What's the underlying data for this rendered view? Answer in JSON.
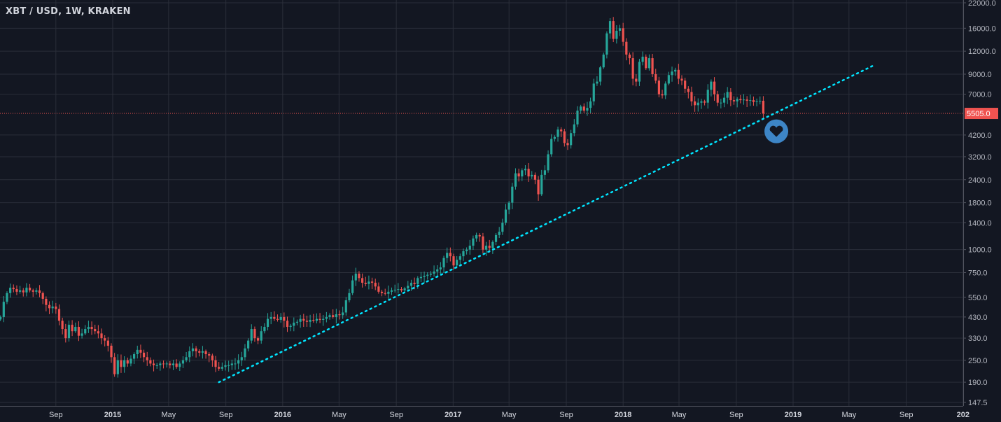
{
  "header": {
    "title": "XBT / USD, 1W, KRAKEN"
  },
  "colors": {
    "background": "#131722",
    "grid": "#2a2e39",
    "up": "#26a69a",
    "down": "#ef5350",
    "trendline": "#00e5ff",
    "price_label": "#ef5350",
    "marker": "#3d85c6"
  },
  "chart_data": {
    "type": "candlestick",
    "symbol": "XBT / USD",
    "interval": "1W",
    "exchange": "KRAKEN",
    "y_scale": "log",
    "ylim": [
      147.5,
      22000
    ],
    "grid": true,
    "y_ticks": [
      "22000.0",
      "16000.0",
      "12000.0",
      "9000.0",
      "7000.0",
      "4200.0",
      "3200.0",
      "2400.0",
      "1800.0",
      "1400.0",
      "1000.0",
      "750.0",
      "550.0",
      "430.0",
      "330.0",
      "250.0",
      "190.0",
      "147.5"
    ],
    "x_ticks": [
      {
        "label": "Sep",
        "date": "2014-09-01"
      },
      {
        "label": "2015",
        "date": "2015-01-01"
      },
      {
        "label": "May",
        "date": "2015-05-01"
      },
      {
        "label": "Sep",
        "date": "2015-09-01"
      },
      {
        "label": "2016",
        "date": "2016-01-01"
      },
      {
        "label": "May",
        "date": "2016-05-01"
      },
      {
        "label": "Sep",
        "date": "2016-09-01"
      },
      {
        "label": "2017",
        "date": "2017-01-01"
      },
      {
        "label": "May",
        "date": "2017-05-01"
      },
      {
        "label": "Sep",
        "date": "2017-09-01"
      },
      {
        "label": "2018",
        "date": "2018-01-01"
      },
      {
        "label": "May",
        "date": "2018-05-01"
      },
      {
        "label": "Sep",
        "date": "2018-09-01"
      },
      {
        "label": "2019",
        "date": "2019-01-01"
      },
      {
        "label": "May",
        "date": "2019-05-01"
      },
      {
        "label": "Sep",
        "date": "2019-09-01"
      },
      {
        "label": "202",
        "date": "2020-01-01"
      }
    ],
    "first_week": "2014-05-05",
    "weekly_close": [
      430,
      520,
      580,
      620,
      610,
      590,
      600,
      585,
      620,
      600,
      590,
      600,
      580,
      540,
      500,
      480,
      490,
      475,
      410,
      370,
      330,
      390,
      360,
      380,
      340,
      350,
      370,
      380,
      370,
      360,
      350,
      330,
      320,
      300,
      260,
      210,
      250,
      230,
      250,
      240,
      255,
      270,
      285,
      275,
      260,
      250,
      240,
      235,
      235,
      240,
      238,
      240,
      235,
      240,
      230,
      240,
      250,
      260,
      280,
      290,
      280,
      275,
      280,
      270,
      265,
      250,
      230,
      225,
      230,
      235,
      235,
      240,
      240,
      250,
      260,
      290,
      320,
      370,
      330,
      320,
      360,
      380,
      420,
      430,
      420,
      415,
      430,
      410,
      380,
      385,
      400,
      405,
      420,
      410,
      405,
      415,
      410,
      420,
      415,
      420,
      430,
      440,
      430,
      445,
      440,
      455,
      530,
      580,
      680,
      740,
      700,
      660,
      650,
      670,
      660,
      630,
      590,
      580,
      575,
      590,
      600,
      605,
      610,
      600,
      615,
      635,
      660,
      650,
      700,
      710,
      720,
      730,
      740,
      760,
      780,
      800,
      900,
      960,
      920,
      820,
      880,
      920,
      980,
      1000,
      1050,
      1150,
      1200,
      1180,
      1000,
      1050,
      1020,
      1100,
      1200,
      1250,
      1400,
      1650,
      1800,
      2200,
      2600,
      2500,
      2700,
      2750,
      2500,
      2550,
      2400,
      2000,
      2550,
      2700,
      3300,
      4000,
      4100,
      4500,
      4400,
      3800,
      3700,
      4300,
      4800,
      5700,
      6000,
      5700,
      5900,
      6400,
      8000,
      8200,
      9800,
      11500,
      15000,
      17500,
      14000,
      15500,
      16000,
      13500,
      11500,
      11000,
      8500,
      8200,
      10500,
      11200,
      9700,
      11000,
      9000,
      8300,
      7000,
      6900,
      8000,
      8900,
      9300,
      9500,
      8500,
      8300,
      7500,
      7200,
      6400,
      6100,
      6300,
      6400,
      6300,
      7400,
      8200,
      7000,
      6300,
      6300,
      6700,
      7200,
      6500,
      6400,
      6600,
      6500,
      6550,
      6450,
      6500,
      6350,
      6400,
      6450,
      5505
    ],
    "last_price": "5505.0",
    "trendline": {
      "style": "dotted",
      "start": {
        "date": "2015-08-17",
        "price": 190
      },
      "end": {
        "date": "2019-06-24",
        "price": 10070
      }
    },
    "annotation": {
      "icon": "heart-icon",
      "date": "2018-11-26",
      "price": 4400
    }
  }
}
